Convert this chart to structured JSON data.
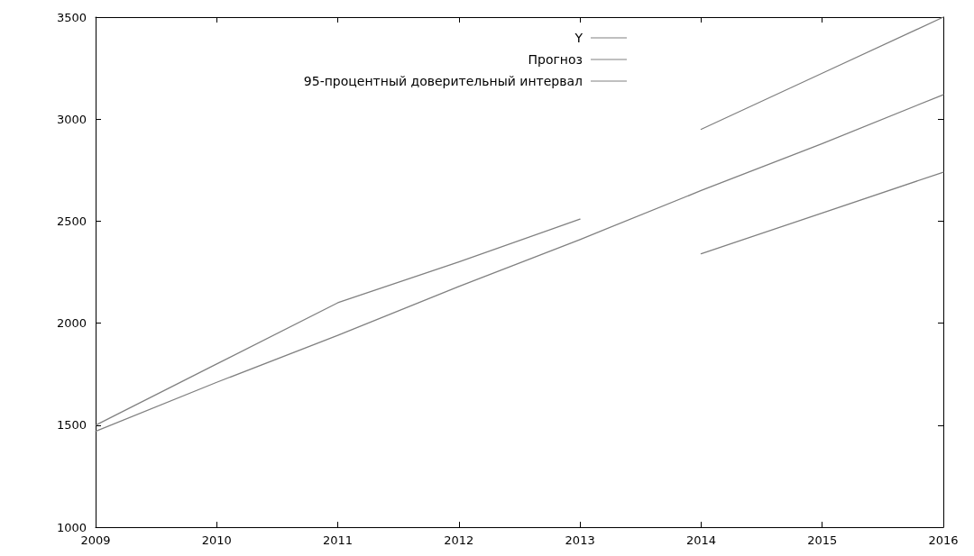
{
  "chart_data": {
    "type": "line",
    "series": [
      {
        "name": "Y",
        "color": "#808080",
        "x": [
          2009,
          2010,
          2011,
          2012,
          2013
        ],
        "values": [
          1500,
          1800,
          2100,
          2300,
          2510
        ]
      },
      {
        "name": "Прогноз",
        "color": "#808080",
        "x": [
          2009,
          2010,
          2011,
          2012,
          2013,
          2014,
          2015,
          2016
        ],
        "values": [
          1470,
          1710,
          1940,
          2180,
          2410,
          2650,
          2880,
          3120
        ]
      },
      {
        "name": "95-процентный доверительный интервал",
        "color": "#808080",
        "x": [
          2014,
          2015,
          2016
        ],
        "values": [
          2950,
          3225,
          3500
        ]
      },
      {
        "color": "#808080",
        "x": [
          2014,
          2015,
          2016
        ],
        "values": [
          2340,
          2540,
          2740
        ]
      }
    ],
    "xlim": [
      2009,
      2016
    ],
    "xticks": [
      2009,
      2010,
      2011,
      2012,
      2013,
      2014,
      2015,
      2016
    ],
    "ylim": [
      1000,
      3500
    ],
    "yticks": [
      1000,
      1500,
      2000,
      2500,
      3000,
      3500
    ],
    "grid": false,
    "legend": "top",
    "marker": "none",
    "line_style": "solid"
  }
}
